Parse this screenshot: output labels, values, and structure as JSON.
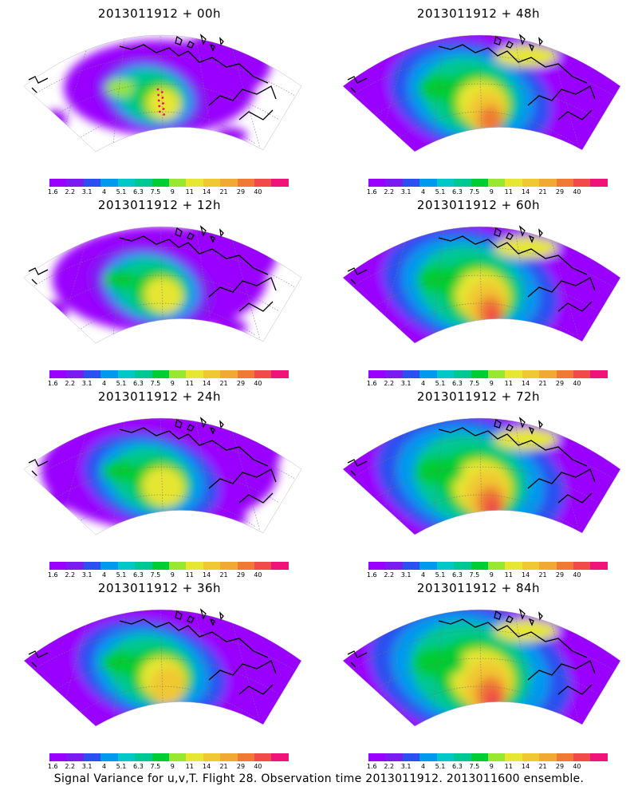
{
  "panels": [
    {
      "title": "2013011912 + 00h",
      "level": 0
    },
    {
      "title": "2013011912 + 48h",
      "level": 4
    },
    {
      "title": "2013011912 + 12h",
      "level": 1
    },
    {
      "title": "2013011912 + 60h",
      "level": 5
    },
    {
      "title": "2013011912 + 24h",
      "level": 2
    },
    {
      "title": "2013011912 + 72h",
      "level": 6
    },
    {
      "title": "2013011912 + 36h",
      "level": 3
    },
    {
      "title": "2013011912 + 84h",
      "level": 7
    }
  ],
  "colorbar": {
    "colors": [
      "#9900ff",
      "#7a1cf0",
      "#2a50f0",
      "#0099ee",
      "#00c8c8",
      "#00c893",
      "#00cc33",
      "#99e633",
      "#e6e633",
      "#f0c833",
      "#f0aa33",
      "#f07a33",
      "#f04a4a",
      "#f0147a"
    ],
    "labels": [
      "1.6",
      "2.2",
      "3.1",
      "4",
      "5.1",
      "6.3",
      "7.5",
      "9",
      "11",
      "14",
      "21",
      "29",
      "40"
    ]
  },
  "caption": "Signal Variance for u,v,T. Flight 28. Observation time 2013011912. 2013011600 ensemble."
}
